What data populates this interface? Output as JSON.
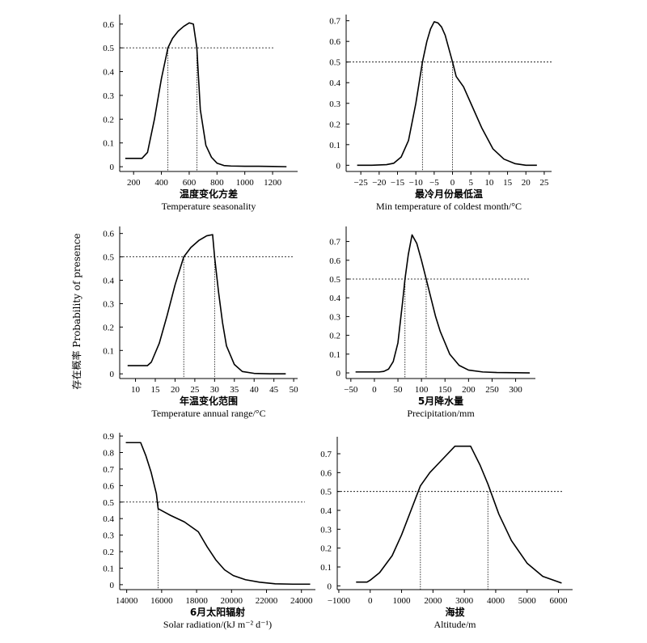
{
  "figure": {
    "ylabel": "存在概率 Probability of presence"
  },
  "chart_data": [
    {
      "type": "line",
      "xlabel_cn": "温度变化方差",
      "xlabel_en": "Temperature seasonality",
      "xlim": [
        100,
        1380
      ],
      "ylim": [
        -0.02,
        0.64
      ],
      "xticks": [
        200,
        400,
        600,
        800,
        1000,
        1200
      ],
      "xtick_labels": [
        "200",
        "400",
        "600",
        "800",
        "1000",
        "1200"
      ],
      "yticks": [
        0,
        0.1,
        0.2,
        0.3,
        0.4,
        0.5,
        0.6
      ],
      "ytick_labels": [
        "0",
        "0.1",
        "0.2",
        "0.3",
        "0.4",
        "0.5",
        "0.6"
      ],
      "threshold_line": {
        "y": 0.5,
        "x_end": 1210
      },
      "crossings": [
        447,
        655
      ],
      "series": [
        {
          "x": [
            140,
            200,
            260,
            300,
            350,
            400,
            447,
            480,
            520,
            560,
            600,
            630,
            655,
            680,
            720,
            760,
            800,
            850,
            900,
            1000,
            1100,
            1200,
            1300
          ],
          "y": [
            0.035,
            0.035,
            0.035,
            0.06,
            0.2,
            0.37,
            0.5,
            0.54,
            0.57,
            0.59,
            0.605,
            0.6,
            0.5,
            0.24,
            0.09,
            0.04,
            0.015,
            0.005,
            0.003,
            0.002,
            0.002,
            0.001,
            0.0
          ]
        }
      ]
    },
    {
      "type": "line",
      "xlabel_cn": "最冷月份最低温",
      "xlabel_en": "Min temperature of coldest month/°C",
      "xlim": [
        -29,
        27
      ],
      "ylim": [
        -0.03,
        0.73
      ],
      "xticks": [
        -25,
        -20,
        -15,
        -10,
        -5,
        0,
        5,
        10,
        15,
        20,
        25
      ],
      "xtick_labels": [
        "−25",
        "−20",
        "−15",
        "−10",
        "−5",
        "0",
        "5",
        "10",
        "15",
        "20",
        "25"
      ],
      "yticks": [
        0,
        0.1,
        0.2,
        0.3,
        0.4,
        0.5,
        0.6,
        0.7
      ],
      "ytick_labels": [
        "0",
        "0.1",
        "0.2",
        "0.3",
        "0.4",
        "0.5",
        "0.6",
        "0.7"
      ],
      "threshold_line": {
        "y": 0.5,
        "x_end": 27
      },
      "crossings": [
        -8.2,
        0
      ],
      "series": [
        {
          "x": [
            -26,
            -22,
            -18,
            -16,
            -14,
            -12,
            -10,
            -8.2,
            -7,
            -6,
            -5,
            -4,
            -3,
            -2,
            0,
            1,
            3,
            5,
            8,
            11,
            14,
            17,
            20,
            23
          ],
          "y": [
            0.0,
            0.0,
            0.003,
            0.01,
            0.04,
            0.12,
            0.3,
            0.5,
            0.6,
            0.66,
            0.695,
            0.69,
            0.67,
            0.63,
            0.5,
            0.43,
            0.38,
            0.3,
            0.18,
            0.08,
            0.03,
            0.008,
            0.0,
            0.0
          ]
        }
      ]
    },
    {
      "type": "line",
      "xlabel_cn": "年温变化范围",
      "xlabel_en": "Temperature annual range/°C",
      "xlim": [
        6,
        51
      ],
      "ylim": [
        -0.02,
        0.63
      ],
      "xticks": [
        10,
        15,
        20,
        25,
        30,
        35,
        40,
        45,
        50
      ],
      "xtick_labels": [
        "10",
        "15",
        "20",
        "25",
        "30",
        "35",
        "40",
        "45",
        "50"
      ],
      "yticks": [
        0,
        0.1,
        0.2,
        0.3,
        0.4,
        0.5,
        0.6
      ],
      "ytick_labels": [
        "0",
        "0.1",
        "0.2",
        "0.3",
        "0.4",
        "0.5",
        "0.6"
      ],
      "threshold_line": {
        "y": 0.5,
        "x_end": 50
      },
      "crossings": [
        22.2,
        30
      ],
      "series": [
        {
          "x": [
            8,
            10,
            12,
            13,
            14,
            16,
            18,
            20,
            22.2,
            24,
            26,
            28,
            29.5,
            30,
            31,
            32,
            33,
            35,
            37,
            40,
            44,
            48
          ],
          "y": [
            0.035,
            0.035,
            0.035,
            0.035,
            0.05,
            0.13,
            0.25,
            0.38,
            0.5,
            0.54,
            0.57,
            0.59,
            0.595,
            0.5,
            0.35,
            0.22,
            0.12,
            0.04,
            0.01,
            0.002,
            0.0,
            0.0
          ]
        }
      ]
    },
    {
      "type": "line",
      "xlabel_cn": "5月降水量",
      "xlabel_en": "Precipitation/mm",
      "xlim": [
        -60,
        342
      ],
      "ylim": [
        -0.03,
        0.78
      ],
      "xticks": [
        -50,
        0,
        50,
        100,
        150,
        200,
        250,
        300
      ],
      "xtick_labels": [
        "−50",
        "0",
        "50",
        "100",
        "150",
        "200",
        "250",
        "300"
      ],
      "yticks": [
        0,
        0.1,
        0.2,
        0.3,
        0.4,
        0.5,
        0.6,
        0.7
      ],
      "ytick_labels": [
        "0",
        "0.1",
        "0.2",
        "0.3",
        "0.4",
        "0.5",
        "0.6",
        "0.7"
      ],
      "threshold_line": {
        "y": 0.5,
        "x_end": 330
      },
      "crossings": [
        65,
        110
      ],
      "series": [
        {
          "x": [
            -40,
            -10,
            10,
            20,
            30,
            40,
            50,
            60,
            65,
            72,
            80,
            90,
            100,
            110,
            120,
            130,
            140,
            160,
            180,
            200,
            230,
            260,
            300,
            330
          ],
          "y": [
            0.005,
            0.005,
            0.005,
            0.008,
            0.02,
            0.06,
            0.16,
            0.38,
            0.5,
            0.63,
            0.735,
            0.69,
            0.6,
            0.5,
            0.4,
            0.3,
            0.22,
            0.1,
            0.04,
            0.015,
            0.005,
            0.002,
            0.001,
            0.0
          ]
        }
      ]
    },
    {
      "type": "line",
      "xlabel_cn": "6月太阳辐射",
      "xlabel_en": "Solar radiation/(kJ m⁻² d⁻¹)",
      "xlim": [
        13600,
        24800
      ],
      "ylim": [
        -0.03,
        0.92
      ],
      "xticks": [
        14000,
        16000,
        18000,
        20000,
        22000,
        24000
      ],
      "xtick_labels": [
        "14000",
        "16000",
        "18000",
        "20000",
        "22000",
        "24000"
      ],
      "yticks": [
        0,
        0.1,
        0.2,
        0.3,
        0.4,
        0.5,
        0.6,
        0.7,
        0.8,
        0.9
      ],
      "ytick_labels": [
        "0",
        "0.1",
        "0.2",
        "0.3",
        "0.4",
        "0.5",
        "0.6",
        "0.7",
        "0.8",
        "0.9"
      ],
      "threshold_line": {
        "y": 0.5,
        "x_end": 24200
      },
      "crossings": [
        15800
      ],
      "series": [
        {
          "x": [
            13950,
            14500,
            14800,
            15100,
            15400,
            15700,
            15800,
            16500,
            17300,
            18100,
            18600,
            19100,
            19600,
            20100,
            20800,
            21600,
            22500,
            23500,
            24500
          ],
          "y": [
            0.86,
            0.86,
            0.86,
            0.78,
            0.68,
            0.55,
            0.46,
            0.42,
            0.38,
            0.32,
            0.23,
            0.15,
            0.09,
            0.055,
            0.03,
            0.015,
            0.005,
            0.003,
            0.003
          ]
        }
      ]
    },
    {
      "type": "line",
      "xlabel_cn": "海拔",
      "xlabel_en": "Altitude/m",
      "xlim": [
        -1050,
        6450
      ],
      "ylim": [
        -0.02,
        0.79
      ],
      "xticks": [
        -1000,
        0,
        1000,
        2000,
        3000,
        4000,
        5000,
        6000
      ],
      "xtick_labels": [
        "−1000",
        "0",
        "1000",
        "2000",
        "3000",
        "4000",
        "5000",
        "6000"
      ],
      "yticks": [
        0,
        0.1,
        0.2,
        0.3,
        0.4,
        0.5,
        0.6,
        0.7
      ],
      "ytick_labels": [
        "0",
        "0.1",
        "0.2",
        "0.3",
        "0.4",
        "0.5",
        "0.6",
        "0.7"
      ],
      "threshold_line": {
        "y": 0.5,
        "x_end": 6150
      },
      "crossings": [
        1600,
        3750
      ],
      "series": [
        {
          "x": [
            -450,
            -100,
            0,
            300,
            700,
            1000,
            1300,
            1600,
            1900,
            2300,
            2700,
            3000,
            3200,
            3500,
            3750,
            4100,
            4500,
            5000,
            5500,
            6100
          ],
          "y": [
            0.02,
            0.02,
            0.03,
            0.07,
            0.16,
            0.27,
            0.4,
            0.53,
            0.6,
            0.67,
            0.74,
            0.74,
            0.74,
            0.64,
            0.54,
            0.38,
            0.24,
            0.12,
            0.05,
            0.015
          ]
        }
      ]
    }
  ]
}
